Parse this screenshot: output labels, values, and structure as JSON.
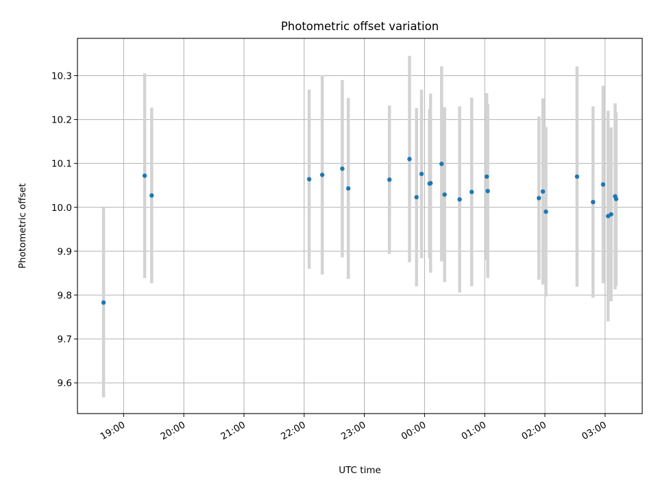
{
  "chart_data": {
    "type": "scatter",
    "title": "Photometric offset variation",
    "xlabel": "UTC time",
    "ylabel": "Photometric offset",
    "x_tick_labels": [
      "19:00",
      "20:00",
      "21:00",
      "22:00",
      "23:00",
      "00:00",
      "01:00",
      "02:00",
      "03:00"
    ],
    "x_tick_hours": [
      19,
      20,
      21,
      22,
      23,
      24,
      25,
      26,
      27
    ],
    "y_ticks": [
      9.6,
      9.7,
      9.8,
      9.9,
      10.0,
      10.1,
      10.2,
      10.3
    ],
    "xlim_hours": [
      18.233,
      27.617
    ],
    "ylim": [
      9.53,
      10.385
    ],
    "grid": true,
    "marker_color": "#1f77b4",
    "errorbar_color": "#d3d3d3",
    "points": [
      {
        "t": "18:40",
        "y": 9.783,
        "err": 0.216
      },
      {
        "t": "19:21",
        "y": 10.072,
        "err": 0.233
      },
      {
        "t": "19:28",
        "y": 10.027,
        "err": 0.2
      },
      {
        "t": "22:05",
        "y": 10.064,
        "err": 0.204
      },
      {
        "t": "22:18",
        "y": 10.074,
        "err": 0.227
      },
      {
        "t": "22:38",
        "y": 10.088,
        "err": 0.202
      },
      {
        "t": "22:44",
        "y": 10.043,
        "err": 0.206
      },
      {
        "t": "23:25",
        "y": 10.063,
        "err": 0.169
      },
      {
        "t": "23:45",
        "y": 10.11,
        "err": 0.235
      },
      {
        "t": "23:52",
        "y": 10.023,
        "err": 0.203
      },
      {
        "t": "23:57",
        "y": 10.076,
        "err": 0.192
      },
      {
        "t": "00:05",
        "y": 10.054,
        "err": 0.17
      },
      {
        "t": "00:06",
        "y": 10.055,
        "err": 0.204
      },
      {
        "t": "00:17",
        "y": 10.099,
        "err": 0.222
      },
      {
        "t": "00:20",
        "y": 10.029,
        "err": 0.199
      },
      {
        "t": "00:35",
        "y": 10.018,
        "err": 0.212
      },
      {
        "t": "00:47",
        "y": 10.035,
        "err": 0.215
      },
      {
        "t": "01:02",
        "y": 10.07,
        "err": 0.19
      },
      {
        "t": "01:03",
        "y": 10.037,
        "err": 0.198
      },
      {
        "t": "01:54",
        "y": 10.021,
        "err": 0.186
      },
      {
        "t": "01:58",
        "y": 10.036,
        "err": 0.212
      },
      {
        "t": "02:01",
        "y": 9.99,
        "err": 0.193
      },
      {
        "t": "02:32",
        "y": 10.07,
        "err": 0.251
      },
      {
        "t": "02:48",
        "y": 10.012,
        "err": 0.218
      },
      {
        "t": "02:58",
        "y": 10.052,
        "err": 0.225
      },
      {
        "t": "03:03",
        "y": 9.98,
        "err": 0.24
      },
      {
        "t": "03:06",
        "y": 9.984,
        "err": 0.198
      },
      {
        "t": "03:10",
        "y": 10.025,
        "err": 0.212
      },
      {
        "t": "03:11",
        "y": 10.019,
        "err": 0.198
      }
    ]
  }
}
